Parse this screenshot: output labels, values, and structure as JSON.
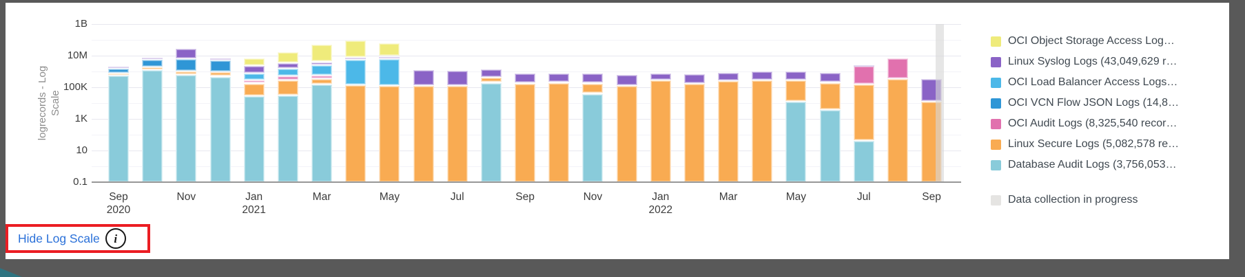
{
  "frame": {
    "background_color": "#595959",
    "panel_color": "#ffffff",
    "corner_accent_color": "#2E7380"
  },
  "footer": {
    "link_label": "Hide Log Scale",
    "link_color": "#2B71D9",
    "info_glyph": "i",
    "annotation_color": "#EB1D23"
  },
  "legend": {
    "order": [
      "objstore",
      "syslog",
      "lb",
      "vcn",
      "audit",
      "secure",
      "db"
    ],
    "progress_label": "Data collection in progress",
    "progress_color": "#E5E4E2"
  },
  "chart_data": {
    "type": "bar",
    "stacked": true,
    "yscale": "log",
    "ylabel": "logrecords - Log Scale",
    "ylabel_lines": [
      "logrecords - Log",
      "Scale"
    ],
    "ylim": [
      0.1,
      1000000000
    ],
    "ytick_labels": [
      "1B",
      "10M",
      "100K",
      "1K",
      "10",
      "0.1"
    ],
    "grid": true,
    "legend_position": "right",
    "x_tick_labels": [
      {
        "line1": "Sep",
        "line2": "2020"
      },
      {
        "line1": "Nov",
        "line2": ""
      },
      {
        "line1": "Jan",
        "line2": "2021"
      },
      {
        "line1": "Mar",
        "line2": ""
      },
      {
        "line1": "May",
        "line2": ""
      },
      {
        "line1": "Jul",
        "line2": ""
      },
      {
        "line1": "Sep",
        "line2": ""
      },
      {
        "line1": "Nov",
        "line2": ""
      },
      {
        "line1": "Jan",
        "line2": "2022"
      },
      {
        "line1": "Mar",
        "line2": ""
      },
      {
        "line1": "May",
        "line2": ""
      },
      {
        "line1": "Jul",
        "line2": ""
      },
      {
        "line1": "Sep",
        "line2": ""
      }
    ],
    "series": {
      "objstore": {
        "label": "OCI Object Storage Access Log…",
        "color": "#EFEB7B"
      },
      "syslog": {
        "label": "Linux Syslog Logs (43,049,629 r…",
        "color": "#8A63C6"
      },
      "lb": {
        "label": "OCI Load Balancer Access Logs…",
        "color": "#4CB8E8"
      },
      "vcn": {
        "label": "OCI VCN Flow JSON Logs (14,8…",
        "color": "#2F96D6"
      },
      "audit": {
        "label": "OCI Audit Logs (8,325,540 recor…",
        "color": "#E171AE"
      },
      "secure": {
        "label": "Linux Secure Logs (5,082,578 re…",
        "color": "#F9AB52"
      },
      "db": {
        "label": "Database Audit Logs (3,756,053…",
        "color": "#89CBDA"
      }
    },
    "bars": [
      {
        "month": "Sep 2020",
        "segments": [
          [
            "db",
            550000
          ],
          [
            "secure",
            740000
          ],
          [
            "vcn",
            1500000
          ],
          [
            "syslog",
            2100000
          ]
        ]
      },
      {
        "month": "Oct 2020",
        "segments": [
          [
            "db",
            1200000
          ],
          [
            "secure",
            1800000
          ],
          [
            "vcn",
            5300000
          ],
          [
            "syslog",
            7200000
          ]
        ]
      },
      {
        "month": "Nov 2020",
        "segments": [
          [
            "db",
            590000
          ],
          [
            "secure",
            1000000
          ],
          [
            "vcn",
            6000000
          ],
          [
            "syslog",
            28000000
          ]
        ]
      },
      {
        "month": "Dec 2020",
        "segments": [
          [
            "db",
            470000
          ],
          [
            "secure",
            910000
          ],
          [
            "vcn",
            4800000
          ],
          [
            "syslog",
            6700000
          ]
        ]
      },
      {
        "month": "Jan 2021",
        "segments": [
          [
            "db",
            27000
          ],
          [
            "secure",
            170000
          ],
          [
            "audit",
            280000
          ],
          [
            "lb",
            760000
          ],
          [
            "syslog",
            2200000
          ],
          [
            "objstore",
            6700000
          ]
        ]
      },
      {
        "month": "Feb 2021",
        "segments": [
          [
            "db",
            29000
          ],
          [
            "secure",
            260000
          ],
          [
            "audit",
            510000
          ],
          [
            "lb",
            1500000
          ],
          [
            "syslog",
            3400000
          ],
          [
            "objstore",
            16000000
          ]
        ]
      },
      {
        "month": "Mar 2021",
        "segments": [
          [
            "db",
            150000
          ],
          [
            "secure",
            330000
          ],
          [
            "audit",
            550000
          ],
          [
            "lb",
            2500000
          ],
          [
            "syslog",
            3800000
          ],
          [
            "objstore",
            50000000
          ]
        ]
      },
      {
        "month": "Apr 2021",
        "segments": [
          [
            "secure",
            135000
          ],
          [
            "lb",
            5300000
          ],
          [
            "syslog",
            7200000
          ],
          [
            "objstore",
            87000000
          ]
        ]
      },
      {
        "month": "May 2021",
        "segments": [
          [
            "secure",
            120000
          ],
          [
            "lb",
            6000000
          ],
          [
            "syslog",
            8500000
          ],
          [
            "objstore",
            63000000
          ]
        ]
      },
      {
        "month": "Jun 2021",
        "segments": [
          [
            "secure",
            120000
          ],
          [
            "syslog",
            1260000
          ]
        ]
      },
      {
        "month": "Jul 2021",
        "segments": [
          [
            "secure",
            120000
          ],
          [
            "syslog",
            1150000
          ]
        ]
      },
      {
        "month": "Aug 2021",
        "segments": [
          [
            "db",
            190000
          ],
          [
            "secure",
            400000
          ],
          [
            "syslog",
            1400000
          ]
        ]
      },
      {
        "month": "Sep 2021",
        "segments": [
          [
            "secure",
            170000
          ],
          [
            "syslog",
            720000
          ]
        ]
      },
      {
        "month": "Oct 2021",
        "segments": [
          [
            "secure",
            190000
          ],
          [
            "syslog",
            760000
          ]
        ]
      },
      {
        "month": "Nov 2021",
        "segments": [
          [
            "db",
            38000
          ],
          [
            "secure",
            170000
          ],
          [
            "syslog",
            720000
          ]
        ]
      },
      {
        "month": "Dec 2021",
        "segments": [
          [
            "secure",
            120000
          ],
          [
            "syslog",
            590000
          ]
        ]
      },
      {
        "month": "Jan 2022",
        "segments": [
          [
            "secure",
            260000
          ],
          [
            "syslog",
            720000
          ]
        ]
      },
      {
        "month": "Feb 2022",
        "segments": [
          [
            "secure",
            160000
          ],
          [
            "syslog",
            650000
          ]
        ]
      },
      {
        "month": "Mar 2022",
        "segments": [
          [
            "secure",
            240000
          ],
          [
            "syslog",
            820000
          ]
        ]
      },
      {
        "month": "Apr 2022",
        "segments": [
          [
            "secure",
            260000
          ],
          [
            "syslog",
            1000000
          ]
        ]
      },
      {
        "month": "May 2022",
        "segments": [
          [
            "db",
            12000
          ],
          [
            "secure",
            260000
          ],
          [
            "syslog",
            1000000
          ]
        ]
      },
      {
        "month": "Jun 2022",
        "segments": [
          [
            "db",
            3700
          ],
          [
            "secure",
            190000
          ],
          [
            "syslog",
            820000
          ]
        ]
      },
      {
        "month": "Jul 2022",
        "segments": [
          [
            "db",
            40
          ],
          [
            "secure",
            150000
          ],
          [
            "audit",
            2200000
          ],
          [
            "syslog",
            2500000
          ]
        ]
      },
      {
        "month": "Aug 2022",
        "segments": [
          [
            "secure",
            330000
          ],
          [
            "audit",
            6700000
          ]
        ]
      },
      {
        "month": "Sep 2022",
        "segments": [
          [
            "secure",
            12000
          ],
          [
            "syslog",
            330000
          ]
        ]
      }
    ],
    "progress_band": {
      "label": "Data collection in progress",
      "over_month": "Sep 2022"
    }
  }
}
